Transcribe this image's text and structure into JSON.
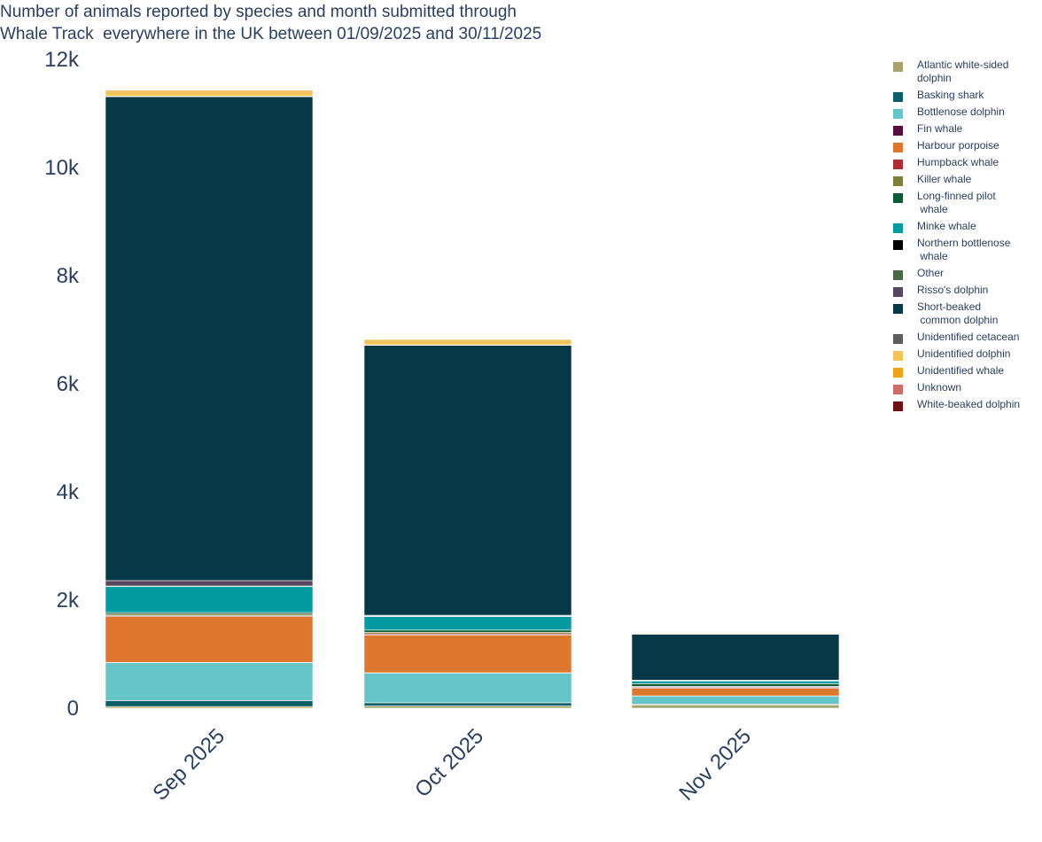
{
  "chart_data": {
    "type": "bar",
    "barmode": "stack",
    "title_lines": [
      "Number of animals reported by species and month submitted through",
      "Whale Track  everywhere in the UK between 01/09/2025 and 30/11/2025"
    ],
    "categories": [
      "Sep 2025",
      "Oct 2025",
      "Nov 2025"
    ],
    "ylim": [
      0,
      12000
    ],
    "yticks": [
      {
        "value": 0,
        "label": "0"
      },
      {
        "value": 2000,
        "label": "2k"
      },
      {
        "value": 4000,
        "label": "4k"
      },
      {
        "value": 6000,
        "label": "6k"
      },
      {
        "value": 8000,
        "label": "8k"
      },
      {
        "value": 10000,
        "label": "10k"
      },
      {
        "value": 12000,
        "label": "12k"
      }
    ],
    "grid": false,
    "legend_position": "right",
    "series": [
      {
        "name": "Atlantic white-sided\ndolphin",
        "color": "#a8a36a",
        "values": [
          30,
          40,
          60
        ]
      },
      {
        "name": "Basking shark",
        "color": "#0c5f68",
        "values": [
          110,
          60,
          15
        ]
      },
      {
        "name": "Bottlenose dolphin",
        "color": "#66c5c6",
        "values": [
          700,
          550,
          150
        ]
      },
      {
        "name": "Fin whale",
        "color": "#5a0e3c",
        "values": [
          5,
          5,
          3
        ]
      },
      {
        "name": "Harbour porpoise",
        "color": "#dd7730",
        "values": [
          850,
          700,
          140
        ]
      },
      {
        "name": "Humpback whale",
        "color": "#ac2f34",
        "values": [
          15,
          20,
          20
        ]
      },
      {
        "name": "Killer whale",
        "color": "#7f7f3a",
        "values": [
          30,
          30,
          15
        ]
      },
      {
        "name": "Long-finned pilot\n whale",
        "color": "#0d5a36",
        "values": [
          30,
          40,
          50
        ]
      },
      {
        "name": "Minke whale",
        "color": "#039b9f",
        "values": [
          480,
          250,
          50
        ]
      },
      {
        "name": "Northern bottlenose\n whale",
        "color": "#000000",
        "values": [
          0,
          0,
          0
        ]
      },
      {
        "name": "Other",
        "color": "#486948",
        "values": [
          10,
          10,
          10
        ]
      },
      {
        "name": "Risso's dolphin",
        "color": "#5b4661",
        "values": [
          100,
          15,
          5
        ]
      },
      {
        "name": "Short-beaked\n common dolphin",
        "color": "#063945",
        "values": [
          8950,
          4990,
          850
        ]
      },
      {
        "name": "Unidentified cetacean",
        "color": "#5d5d5d",
        "values": [
          10,
          10,
          5
        ]
      },
      {
        "name": "Unidentified dolphin",
        "color": "#f2c35b",
        "values": [
          110,
          100,
          15
        ]
      },
      {
        "name": "Unidentified whale",
        "color": "#eea418",
        "values": [
          10,
          10,
          3
        ]
      },
      {
        "name": "Unknown",
        "color": "#cf6b68",
        "values": [
          5,
          5,
          3
        ]
      },
      {
        "name": "White-beaked dolphin",
        "color": "#6b1216",
        "values": [
          5,
          5,
          3
        ]
      }
    ]
  }
}
